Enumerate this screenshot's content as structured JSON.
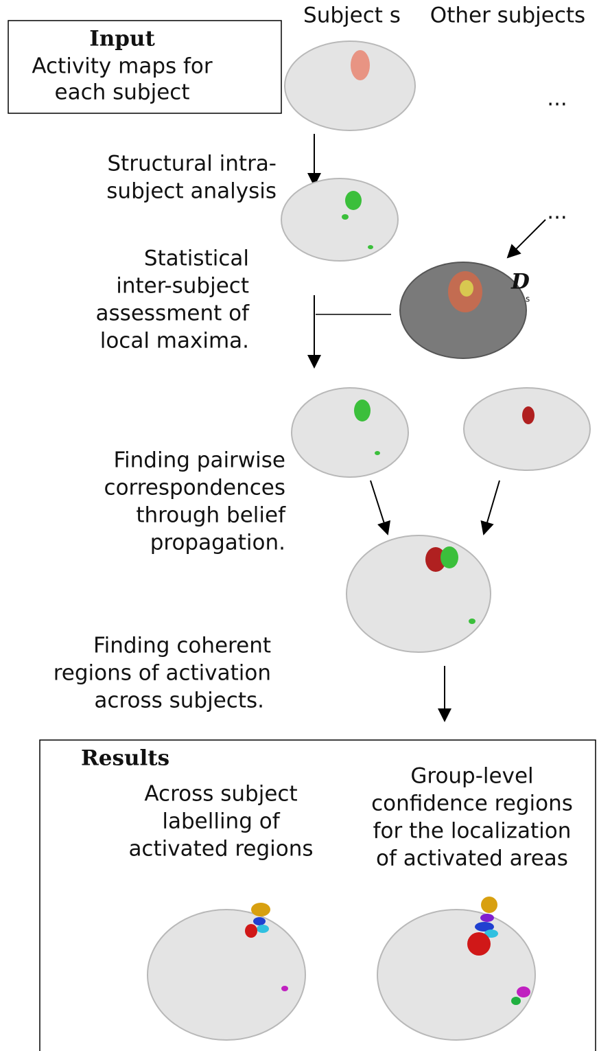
{
  "header": {
    "subject": "Subject s",
    "others": "Other subjects"
  },
  "input": {
    "title": "Input",
    "lines": [
      "Activity maps  for",
      "each subject"
    ]
  },
  "ellipsis": [
    "...",
    "..."
  ],
  "steps": [
    {
      "lines": [
        "Structural intra-",
        "subject analysis"
      ]
    },
    {
      "lines": [
        "Statistical",
        "inter-subject",
        "assessment of",
        "local maxima."
      ]
    },
    {
      "lines": [
        "Finding pairwise",
        "correspondences",
        "through belief",
        "propagation."
      ]
    },
    {
      "lines": [
        "Finding  coherent",
        "regions of activation",
        "across subjects."
      ]
    }
  ],
  "symbol": {
    "main": "D",
    "sub": "s"
  },
  "results": {
    "title": "Results",
    "left": [
      "Across subject",
      "labelling of",
      "activated regions"
    ],
    "right": [
      "Group-level",
      "confidence regions",
      "for the localization",
      "of activated areas"
    ]
  }
}
